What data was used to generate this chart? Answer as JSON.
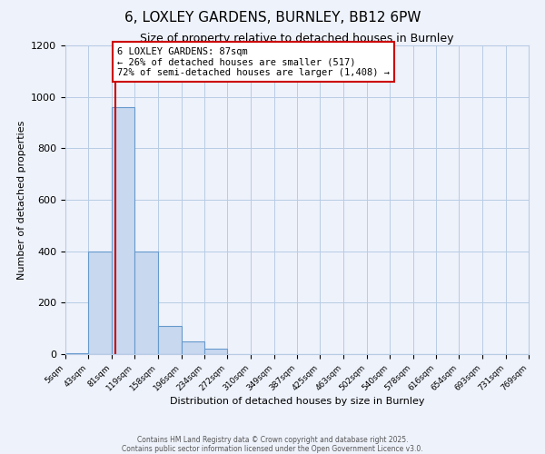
{
  "title": "6, LOXLEY GARDENS, BURNLEY, BB12 6PW",
  "subtitle": "Size of property relative to detached houses in Burnley",
  "xlabel": "Distribution of detached houses by size in Burnley",
  "ylabel": "Number of detached properties",
  "bin_edges": [
    5,
    43,
    81,
    119,
    158,
    196,
    234,
    272,
    310,
    349,
    387,
    425,
    463,
    502,
    540,
    578,
    616,
    654,
    693,
    731,
    769
  ],
  "bin_counts": [
    5,
    400,
    960,
    400,
    110,
    50,
    20,
    0,
    0,
    0,
    0,
    0,
    0,
    0,
    0,
    0,
    0,
    0,
    0,
    0
  ],
  "bar_color": "#c8d8ef",
  "bar_edgecolor": "#6699cc",
  "property_line_x": 87,
  "property_line_color": "#cc0000",
  "annotation_title": "6 LOXLEY GARDENS: 87sqm",
  "annotation_line1": "← 26% of detached houses are smaller (517)",
  "annotation_line2": "72% of semi-detached houses are larger (1,408) →",
  "annotation_box_facecolor": "#ffffff",
  "annotation_box_edgecolor": "#cc0000",
  "ylim": [
    0,
    1200
  ],
  "yticks": [
    0,
    200,
    400,
    600,
    800,
    1000,
    1200
  ],
  "tick_labels": [
    "5sqm",
    "43sqm",
    "81sqm",
    "119sqm",
    "158sqm",
    "196sqm",
    "234sqm",
    "272sqm",
    "310sqm",
    "349sqm",
    "387sqm",
    "425sqm",
    "463sqm",
    "502sqm",
    "540sqm",
    "578sqm",
    "616sqm",
    "654sqm",
    "693sqm",
    "731sqm",
    "769sqm"
  ],
  "footer1": "Contains HM Land Registry data © Crown copyright and database right 2025.",
  "footer2": "Contains public sector information licensed under the Open Government Licence v3.0.",
  "bg_color": "#eef2fb",
  "grid_color": "#b8cce4",
  "title_fontsize": 11,
  "subtitle_fontsize": 9,
  "ylabel_fontsize": 8,
  "xlabel_fontsize": 8
}
